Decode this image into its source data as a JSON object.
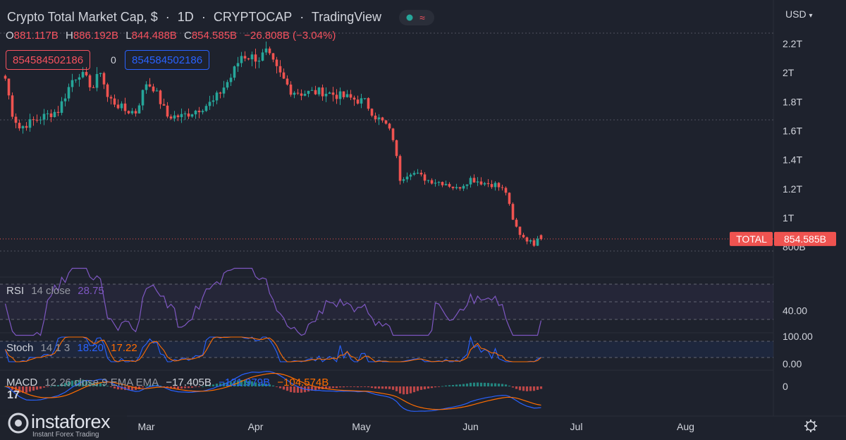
{
  "header": {
    "symbol_name": "Crypto Total Market Cap, $",
    "interval": "1D",
    "exchange": "CRYPTOCAP",
    "source": "TradingView",
    "separator": "·"
  },
  "ohlc": {
    "o_label": "O",
    "o": "881.117B",
    "h_label": "H",
    "h": "886.192B",
    "l_label": "L",
    "l": "844.488B",
    "c_label": "C",
    "c": "854.585B",
    "change": "−26.808B (−3.04%)"
  },
  "price_boxes": {
    "left": "854584502186",
    "middle": "0",
    "right": "854584502186"
  },
  "currency_menu": "USD",
  "price_axis": {
    "ticks": [
      {
        "label": "2.2T",
        "v": 2200000000000.0
      },
      {
        "label": "2T",
        "v": 2000000000000.0
      },
      {
        "label": "1.8T",
        "v": 1800000000000.0
      },
      {
        "label": "1.6T",
        "v": 1600000000000.0
      },
      {
        "label": "1.4T",
        "v": 1400000000000.0
      },
      {
        "label": "1.2T",
        "v": 1200000000000.0
      },
      {
        "label": "1T",
        "v": 1000000000000.0
      },
      {
        "label": "800B",
        "v": 800000000000.0
      }
    ],
    "last_price_tag": {
      "name": "TOTAL",
      "value": "854.585B"
    }
  },
  "time_axis": {
    "labels": [
      "Mar",
      "Apr",
      "May",
      "Jun",
      "Jul",
      "Aug"
    ]
  },
  "indicators": {
    "rsi": {
      "name": "RSI",
      "params": "14 close",
      "value": "28.75",
      "axis_label": "40.00"
    },
    "stoch": {
      "name": "Stoch",
      "params": "14 1 3",
      "k": "18.20",
      "d": "17.22",
      "axis_top": "100.00",
      "axis_bottom": "0.00"
    },
    "macd": {
      "name": "MACD",
      "params": "12 26 close 9 EMA EMA",
      "hist": "−17.405B",
      "macd": "−121.979B",
      "signal": "−104.574B",
      "axis_label": "0"
    }
  },
  "watermark": {
    "brand": "instaforex",
    "tagline": "Instant Forex Trading"
  },
  "colors": {
    "up": "#26a69a",
    "down": "#ef5350",
    "rsi": "#7e57c2",
    "stoch_k": "#2962ff",
    "stoch_d": "#ff6d00",
    "bg": "#1e222d"
  },
  "chart_data": {
    "type": "candlestick",
    "title": "Crypto Total Market Cap, $",
    "interval": "1D",
    "ylim": [
      760000000000.0,
      2300000000000.0
    ],
    "x_labels": [
      "Mar",
      "Apr",
      "May",
      "Jun",
      "Jul",
      "Aug"
    ],
    "close_anchors": [
      {
        "date": "2022-01-20",
        "close": 1960000000000.0
      },
      {
        "date": "2022-01-22",
        "close": 1720000000000.0
      },
      {
        "date": "2022-01-24",
        "close": 1620000000000.0
      },
      {
        "date": "2022-01-28",
        "close": 1670000000000.0
      },
      {
        "date": "2022-02-04",
        "close": 1740000000000.0
      },
      {
        "date": "2022-02-08",
        "close": 1950000000000.0
      },
      {
        "date": "2022-02-10",
        "close": 2000000000000.0
      },
      {
        "date": "2022-02-14",
        "close": 1900000000000.0
      },
      {
        "date": "2022-02-16",
        "close": 2020000000000.0
      },
      {
        "date": "2022-02-18",
        "close": 1830000000000.0
      },
      {
        "date": "2022-02-23",
        "close": 1740000000000.0
      },
      {
        "date": "2022-02-26",
        "close": 1730000000000.0
      },
      {
        "date": "2022-03-01",
        "close": 1930000000000.0
      },
      {
        "date": "2022-03-03",
        "close": 1900000000000.0
      },
      {
        "date": "2022-03-07",
        "close": 1700000000000.0
      },
      {
        "date": "2022-03-11",
        "close": 1700000000000.0
      },
      {
        "date": "2022-03-14",
        "close": 1730000000000.0
      },
      {
        "date": "2022-03-20",
        "close": 1800000000000.0
      },
      {
        "date": "2022-03-25",
        "close": 1970000000000.0
      },
      {
        "date": "2022-03-28",
        "close": 2120000000000.0
      },
      {
        "date": "2022-04-02",
        "close": 2100000000000.0
      },
      {
        "date": "2022-04-04",
        "close": 2140000000000.0
      },
      {
        "date": "2022-04-07",
        "close": 2020000000000.0
      },
      {
        "date": "2022-04-11",
        "close": 1880000000000.0
      },
      {
        "date": "2022-04-14",
        "close": 1860000000000.0
      },
      {
        "date": "2022-04-20",
        "close": 1870000000000.0
      },
      {
        "date": "2022-04-25",
        "close": 1840000000000.0
      },
      {
        "date": "2022-05-02",
        "close": 1800000000000.0
      },
      {
        "date": "2022-05-05",
        "close": 1700000000000.0
      },
      {
        "date": "2022-05-08",
        "close": 1640000000000.0
      },
      {
        "date": "2022-05-10",
        "close": 1550000000000.0
      },
      {
        "date": "2022-05-12",
        "close": 1270000000000.0
      },
      {
        "date": "2022-05-15",
        "close": 1320000000000.0
      },
      {
        "date": "2022-05-20",
        "close": 1260000000000.0
      },
      {
        "date": "2022-05-25",
        "close": 1240000000000.0
      },
      {
        "date": "2022-05-28",
        "close": 1200000000000.0
      },
      {
        "date": "2022-06-01",
        "close": 1270000000000.0
      },
      {
        "date": "2022-06-05",
        "close": 1240000000000.0
      },
      {
        "date": "2022-06-08",
        "close": 1230000000000.0
      },
      {
        "date": "2022-06-11",
        "close": 1180000000000.0
      },
      {
        "date": "2022-06-13",
        "close": 980000000000.0
      },
      {
        "date": "2022-06-15",
        "close": 890000000000.0
      },
      {
        "date": "2022-06-17",
        "close": 850000000000.0
      },
      {
        "date": "2022-06-19",
        "close": 820000000000.0
      },
      {
        "date": "2022-06-20",
        "close": 870000000000.0
      },
      {
        "date": "2022-06-21",
        "close": 855000000000.0
      }
    ],
    "last": {
      "date": "2022-06-21",
      "open": 881117000000.0,
      "high": 886192000000.0,
      "low": 844488000000.0,
      "close": 854585000000.0
    },
    "series": [
      {
        "name": "RSI 14 close",
        "last": 28.75
      },
      {
        "name": "Stoch %K",
        "last": 18.2
      },
      {
        "name": "Stoch %D",
        "last": 17.22
      },
      {
        "name": "MACD histogram",
        "last": -17405000000.0
      },
      {
        "name": "MACD",
        "last": -121979000000.0
      },
      {
        "name": "Signal",
        "last": -104574000000.0
      }
    ]
  }
}
